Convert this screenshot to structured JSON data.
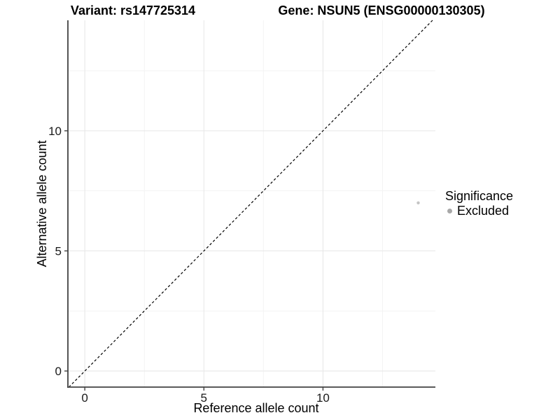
{
  "figure": {
    "background": "#ffffff"
  },
  "chart_data": {
    "type": "scatter",
    "titles": {
      "left": "Variant: rs147725314",
      "right": "Gene: NSUN5 (ENSG00000130305)"
    },
    "xlabel": "Reference allele count",
    "ylabel": "Alternative allele count",
    "xlim": [
      -0.71,
      14.72
    ],
    "ylim": [
      -0.67,
      14.6
    ],
    "x_ticks": [
      0,
      5,
      10
    ],
    "y_ticks": [
      0,
      5,
      10
    ],
    "x_minor_ticks": [
      2.5,
      7.5,
      12.5
    ],
    "y_minor_ticks": [
      2.5,
      7.5,
      12.5
    ],
    "grid": "major and minor, light gray on white",
    "points": [
      {
        "x": 14,
        "y": 7,
        "significance": "Excluded"
      }
    ],
    "identity_line": {
      "style": "dashed",
      "equation": "y = x",
      "color": "#000000"
    },
    "legend": {
      "title": "Significance",
      "position": "right",
      "entries": [
        {
          "label": "Excluded",
          "color": "#a8a8a8",
          "shape": "circle"
        }
      ]
    },
    "colors": {
      "point": "#c4c4c4",
      "grid_major": "#e6e6e6",
      "grid_minor": "#f3f3f3",
      "axis_line": "#424242",
      "tick_text": "#1a1a1a"
    }
  }
}
